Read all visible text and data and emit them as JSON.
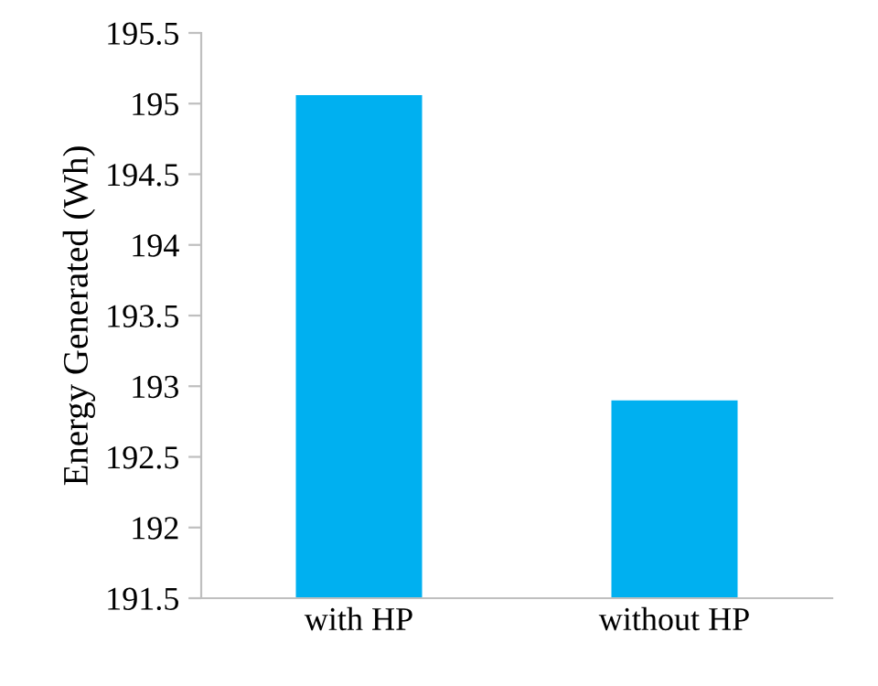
{
  "chart_data": {
    "type": "bar",
    "ylabel": "Energy Generated (Wh)",
    "categories": [
      "with HP",
      "without HP"
    ],
    "values": [
      195.06,
      192.9
    ],
    "color": "#00b0f0",
    "ylim": [
      191.5,
      195.5
    ],
    "yticks": [
      191.5,
      192,
      192.5,
      193,
      193.5,
      194,
      194.5,
      195,
      195.5
    ],
    "grid": false,
    "legend": false
  }
}
